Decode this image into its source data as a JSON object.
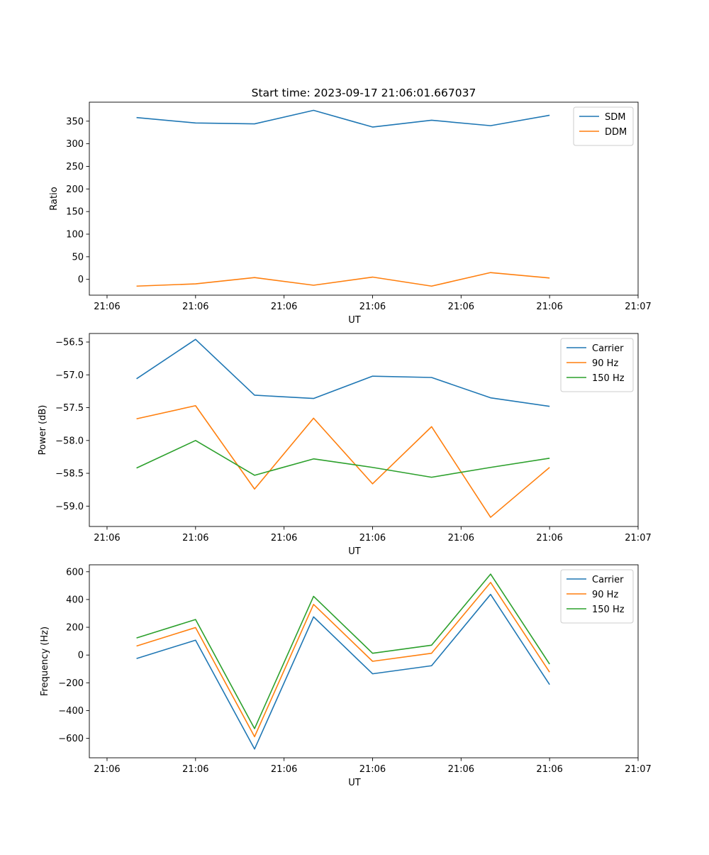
{
  "title": "Start time: 2023-09-17 21:06:01.667037",
  "colors": {
    "blue": "#1f77b4",
    "orange": "#ff7f0e",
    "green": "#2ca02c"
  },
  "chart_data": [
    {
      "type": "line",
      "title": "Start time: 2023-09-17 21:06:01.667037",
      "xlabel": "UT",
      "ylabel": "Ratio",
      "xlim": [
        -0.3,
        9.0
      ],
      "ylim": [
        -35,
        392
      ],
      "x": [
        0.5,
        1.5,
        2.5,
        3.5,
        4.5,
        5.5,
        6.5,
        7.5
      ],
      "xticks": [
        0,
        1.5,
        3,
        4.5,
        6,
        7.5,
        9
      ],
      "xtick_labels": [
        "21:06",
        "21:06",
        "21:06",
        "21:06",
        "21:06",
        "21:06",
        "21:07"
      ],
      "yticks": [
        0,
        50,
        100,
        150,
        200,
        250,
        300,
        350
      ],
      "ytick_labels": [
        "0",
        "50",
        "100",
        "150",
        "200",
        "250",
        "300",
        "350"
      ],
      "legend_position": "top-right",
      "series": [
        {
          "name": "SDM",
          "color": "#1f77b4",
          "values": [
            358,
            346,
            344,
            374,
            337,
            352,
            340,
            363
          ]
        },
        {
          "name": "DDM",
          "color": "#ff7f0e",
          "values": [
            -15,
            -10,
            4,
            -13,
            5,
            -15,
            15,
            3
          ]
        }
      ]
    },
    {
      "type": "line",
      "title": "",
      "xlabel": "UT",
      "ylabel": "Power (dB)",
      "xlim": [
        -0.3,
        9.0
      ],
      "ylim": [
        -59.31,
        -56.37
      ],
      "x": [
        0.5,
        1.5,
        2.5,
        3.5,
        4.5,
        5.5,
        6.5,
        7.5
      ],
      "xticks": [
        0,
        1.5,
        3,
        4.5,
        6,
        7.5,
        9
      ],
      "xtick_labels": [
        "21:06",
        "21:06",
        "21:06",
        "21:06",
        "21:06",
        "21:06",
        "21:07"
      ],
      "yticks": [
        -59.0,
        -58.5,
        -58.0,
        -57.5,
        -57.0,
        -56.5
      ],
      "ytick_labels": [
        "−59.0",
        "−58.5",
        "−58.0",
        "−57.5",
        "−57.0",
        "−56.5"
      ],
      "legend_position": "top-right",
      "series": [
        {
          "name": "Carrier",
          "color": "#1f77b4",
          "values": [
            -57.06,
            -56.46,
            -57.31,
            -57.36,
            -57.02,
            -57.04,
            -57.35,
            -57.48
          ]
        },
        {
          "name": "90 Hz",
          "color": "#ff7f0e",
          "values": [
            -57.67,
            -57.47,
            -58.74,
            -57.66,
            -58.66,
            -57.79,
            -59.17,
            -58.41
          ]
        },
        {
          "name": "150 Hz",
          "color": "#2ca02c",
          "values": [
            -58.42,
            -58.0,
            -58.53,
            -58.28,
            -58.41,
            -58.56,
            -58.41,
            -58.27
          ]
        }
      ]
    },
    {
      "type": "line",
      "title": "",
      "xlabel": "UT",
      "ylabel": "Frequency (Hz)",
      "xlim": [
        -0.3,
        9.0
      ],
      "ylim": [
        -740,
        650
      ],
      "x": [
        0.5,
        1.5,
        2.5,
        3.5,
        4.5,
        5.5,
        6.5,
        7.5
      ],
      "xticks": [
        0,
        1.5,
        3,
        4.5,
        6,
        7.5,
        9
      ],
      "xtick_labels": [
        "21:06",
        "21:06",
        "21:06",
        "21:06",
        "21:06",
        "21:06",
        "21:07"
      ],
      "yticks": [
        -600,
        -400,
        -200,
        0,
        200,
        400,
        600
      ],
      "ytick_labels": [
        "−600",
        "−400",
        "−200",
        "0",
        "200",
        "400",
        "600"
      ],
      "legend_position": "top-right",
      "series": [
        {
          "name": "Carrier",
          "color": "#1f77b4",
          "values": [
            -25,
            107,
            -677,
            275,
            -135,
            -77,
            437,
            -213
          ]
        },
        {
          "name": "90 Hz",
          "color": "#ff7f0e",
          "values": [
            65,
            198,
            -588,
            365,
            -45,
            13,
            523,
            -123
          ]
        },
        {
          "name": "150 Hz",
          "color": "#2ca02c",
          "values": [
            123,
            256,
            -530,
            423,
            13,
            71,
            583,
            -65
          ]
        }
      ]
    }
  ]
}
